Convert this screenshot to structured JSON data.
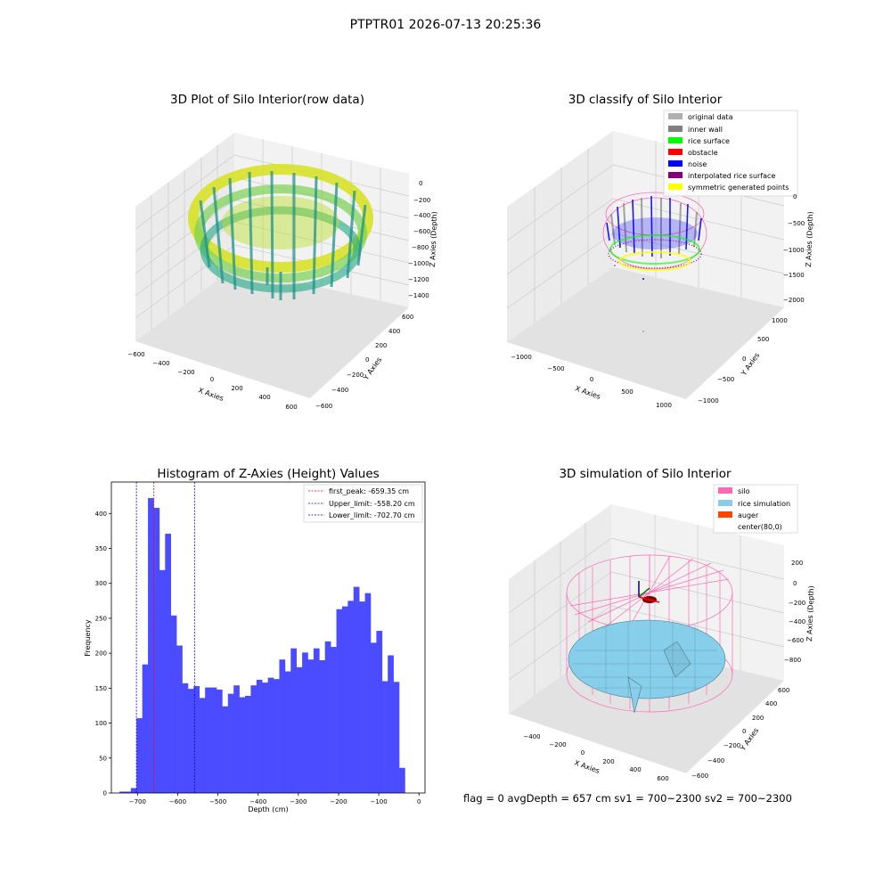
{
  "figure": {
    "suptitle": "PTPTR01 2026-07-13 20:25:36",
    "status_line": "flag = 0     avgDepth = 657 cm  sv1 = 700~2300  sv2 = 700~2300"
  },
  "colors": {
    "hist_bar": "#4b4bff",
    "peak_line": "#ff0000",
    "limit_line": "#0000ff",
    "silo": "#ff69b4",
    "rice_sim": "#87ceeb",
    "auger": "#ff4500",
    "original": "#b0b0b0",
    "inner_wall": "#808080",
    "rice_surface": "#00ff00",
    "obstacle": "#ff0000",
    "noise": "#0000ff",
    "interp_rice": "#800080",
    "symmetric": "#ffff00"
  },
  "chart_data": [
    {
      "type": "scatter",
      "title": "3D Plot of Silo Interior(row data)",
      "xlabel": "X Axies",
      "ylabel": "Y Axies",
      "zlabel": "Z Axies (Depth)",
      "x_ticks": [
        "−600",
        "−400",
        "−200",
        "0",
        "200",
        "400",
        "600"
      ],
      "y_ticks": [
        "−600",
        "−400",
        "−200",
        "0",
        "200",
        "400",
        "600"
      ],
      "z_ticks": [
        "0",
        "−200",
        "−400",
        "−600",
        "−800",
        "−1000",
        "−1200",
        "−1400"
      ],
      "xlim": [
        -600,
        600
      ],
      "ylim": [
        -600,
        600
      ],
      "zlim": [
        -1500,
        0
      ],
      "colormap": "viridis",
      "grid": true
    },
    {
      "type": "scatter",
      "title": "3D classify of Silo Interior",
      "xlabel": "X Axies",
      "ylabel": "Y Axies",
      "zlabel": "Z Axies (Depth)",
      "x_ticks": [
        "−1000",
        "−500",
        "0",
        "500",
        "1000"
      ],
      "y_ticks": [
        "−1000",
        "−500",
        "0",
        "500",
        "1000"
      ],
      "z_ticks": [
        "0",
        "−500",
        "−1000",
        "−1500",
        "−2000"
      ],
      "xlim": [
        -1000,
        1000
      ],
      "ylim": [
        -1000,
        1000
      ],
      "zlim": [
        -2000,
        0
      ],
      "legend": [
        "original data",
        "inner wall",
        "rice surface",
        "obstacle",
        "noise",
        "interpolated rice surface",
        "symmetric generated points"
      ],
      "legend_position": "top-right",
      "grid": true
    },
    {
      "type": "bar",
      "title": "Histogram of Z-Axies (Height) Values",
      "xlabel": "Depth (cm)",
      "ylabel": "Frequency",
      "xlim": [
        -765,
        15
      ],
      "ylim": [
        0,
        445
      ],
      "x_ticks": [
        -700,
        -600,
        -500,
        -400,
        -300,
        -200,
        -100,
        0
      ],
      "x_tick_labels": [
        "−700",
        "−600",
        "−500",
        "−400",
        "−300",
        "−200",
        "−100",
        "0"
      ],
      "y_ticks": [
        0,
        50,
        100,
        150,
        200,
        250,
        300,
        350,
        400
      ],
      "y_tick_labels": [
        "0",
        "50",
        "100",
        "150",
        "200",
        "250",
        "300",
        "350",
        "400"
      ],
      "bin_edges_start": -745,
      "bin_width": 14.2,
      "values": [
        2,
        2,
        7,
        107,
        184,
        422,
        408,
        319,
        371,
        254,
        211,
        157,
        149,
        153,
        136,
        151,
        151,
        148,
        124,
        142,
        154,
        137,
        139,
        154,
        162,
        158,
        165,
        163,
        191,
        174,
        207,
        180,
        201,
        191,
        207,
        190,
        217,
        209,
        263,
        267,
        275,
        295,
        274,
        286,
        215,
        232,
        160,
        197,
        159,
        36
      ],
      "lines": [
        {
          "x": -659.35,
          "label": "first_peak: -659.35 cm",
          "style": "peak"
        },
        {
          "x": -558.2,
          "label": "Upper_limit: -558.20 cm",
          "style": "limit"
        },
        {
          "x": -702.7,
          "label": "Lower_limit: -702.70 cm",
          "style": "limit"
        }
      ],
      "legend_position": "top-right",
      "grid": false
    },
    {
      "type": "surface",
      "title": "3D simulation of Silo Interior",
      "xlabel": "X Axies",
      "ylabel": "Y Axies",
      "zlabel": "Z Axies (Depth)",
      "x_ticks": [
        "−400",
        "−200",
        "0",
        "200",
        "400",
        "600"
      ],
      "y_ticks": [
        "−600",
        "−400",
        "−200",
        "0",
        "200",
        "400",
        "600"
      ],
      "z_ticks": [
        "200",
        "0",
        "−200",
        "−400",
        "−600",
        "−800"
      ],
      "legend": [
        "silo",
        "rice simulation",
        "auger",
        "center(80,0)"
      ],
      "legend_position": "top-right",
      "grid": true
    }
  ]
}
